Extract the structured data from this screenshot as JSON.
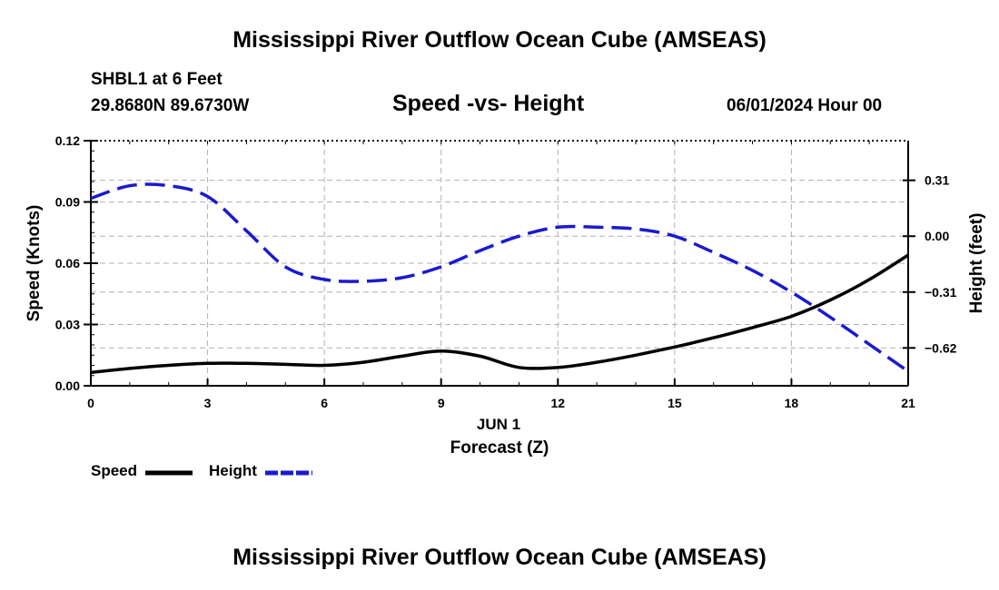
{
  "title": "Mississippi River Outflow Ocean Cube (AMSEAS)",
  "bottom_title": "Mississippi River Outflow Ocean Cube (AMSEAS)",
  "station": "SHBL1 at 6 Feet",
  "coordinates": "29.8680N  89.6730W",
  "subtitle": "Speed -vs- Height",
  "datetime": "06/01/2024 Hour 00",
  "colors": {
    "speed": "#000000",
    "height": "#1a1ad0",
    "grid": "#b0b0b0"
  },
  "chart_data": {
    "type": "line",
    "title": "Speed -vs- Height",
    "xlabel": "Forecast (Z)",
    "date_label": "JUN 1",
    "ylabel_left": "Speed (Knots)",
    "ylabel_right": "Height (feet)",
    "xlim": [
      0,
      21
    ],
    "ylim_left": [
      0,
      0.12
    ],
    "ylim_right": [
      -0.83,
      0.53
    ],
    "x_ticks": [
      0,
      3,
      6,
      9,
      12,
      15,
      18,
      21
    ],
    "x_tick_labels": [
      "0",
      "3",
      "6",
      "9",
      "12",
      "15",
      "18",
      "21"
    ],
    "y_left_ticks": [
      0,
      0.03,
      0.06,
      0.09,
      0.12
    ],
    "y_left_tick_labels": [
      "0.00",
      "0.03",
      "0.06",
      "0.09",
      "0.12"
    ],
    "y_right_ticks": [
      0.31,
      0.0,
      -0.31,
      -0.62
    ],
    "y_right_tick_labels": [
      "0.31",
      "0.00",
      "−0.31",
      "−0.62"
    ],
    "grid": true,
    "series": [
      {
        "name": "Speed",
        "axis": "left",
        "style": "solid",
        "x": [
          0,
          1,
          2,
          3,
          4,
          5,
          6,
          7,
          8,
          9,
          10,
          11,
          12,
          13,
          14,
          15,
          16,
          17,
          18,
          19,
          20,
          21
        ],
        "values": [
          0.0065,
          0.0085,
          0.01,
          0.011,
          0.011,
          0.0105,
          0.01,
          0.0115,
          0.0145,
          0.017,
          0.0145,
          0.009,
          0.009,
          0.0115,
          0.015,
          0.019,
          0.0235,
          0.0285,
          0.034,
          0.042,
          0.052,
          0.064
        ]
      },
      {
        "name": "Height",
        "axis": "right",
        "style": "dashed",
        "x": [
          0,
          1,
          2,
          3,
          4,
          5,
          6,
          7,
          8,
          9,
          10,
          11,
          12,
          13,
          14,
          15,
          16,
          17,
          18,
          19,
          20,
          21
        ],
        "values": [
          0.21,
          0.28,
          0.28,
          0.22,
          0.03,
          -0.17,
          -0.24,
          -0.25,
          -0.23,
          -0.17,
          -0.08,
          0.0,
          0.05,
          0.05,
          0.04,
          0.0,
          -0.09,
          -0.19,
          -0.31,
          -0.45,
          -0.6,
          -0.75
        ]
      }
    ],
    "legend": [
      {
        "name": "Speed",
        "style": "solid"
      },
      {
        "name": "Height",
        "style": "dashed"
      }
    ]
  }
}
